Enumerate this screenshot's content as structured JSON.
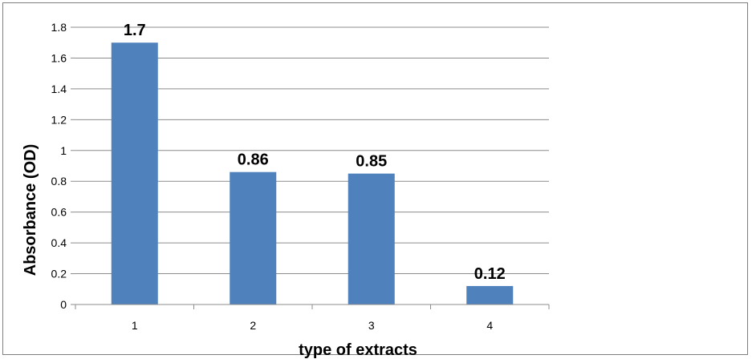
{
  "chart_data": {
    "type": "bar",
    "title": "",
    "xlabel": "type of extracts",
    "ylabel": "Absorbance (OD)",
    "categories": [
      "1",
      "2",
      "3",
      "4"
    ],
    "values": [
      1.7,
      0.86,
      0.85,
      0.12
    ],
    "data_labels": [
      "1.7",
      "0.86",
      "0.85",
      "0.12"
    ],
    "ylim": [
      0,
      1.8
    ],
    "yticks": [
      "0",
      "0.2",
      "0.4",
      "0.6",
      "0.8",
      "1",
      "1.2",
      "1.4",
      "1.6",
      "1.8"
    ],
    "grid": true,
    "legend": "none",
    "bar_color": "#4f81bd",
    "grid_color": "#8c8c8c"
  }
}
